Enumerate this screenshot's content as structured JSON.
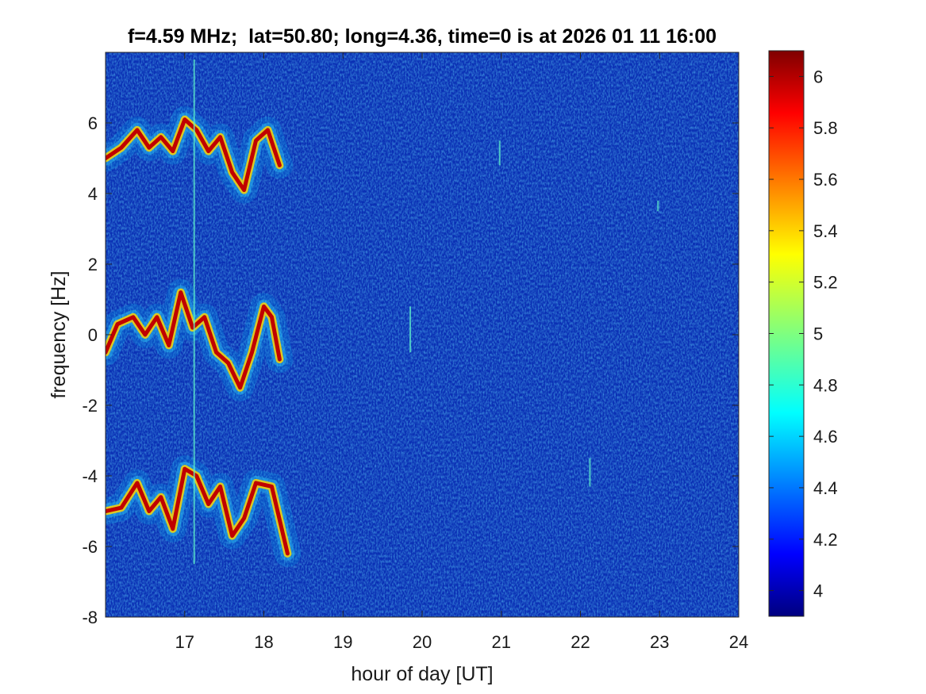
{
  "chart_data": {
    "type": "heatmap",
    "title": "f=4.59 MHz;  lat=50.80; long=4.36, time=0 is at 2026 01 11 16:00",
    "xlabel": "hour of day [UT]",
    "ylabel": "frequency [Hz]",
    "xlim": [
      16,
      24
    ],
    "ylim": [
      -8,
      8
    ],
    "x_ticks": [
      "17",
      "18",
      "19",
      "20",
      "21",
      "22",
      "23",
      "24"
    ],
    "x_tick_values": [
      17,
      18,
      19,
      20,
      21,
      22,
      23,
      24
    ],
    "y_ticks": [
      "6",
      "4",
      "2",
      "0",
      "-2",
      "-4",
      "-6",
      "-8"
    ],
    "y_tick_values": [
      6,
      4,
      2,
      0,
      -2,
      -4,
      -6,
      -8
    ],
    "colorbar": {
      "colormap": "jet",
      "clim": [
        3.9,
        6.1
      ],
      "ticks": [
        "6",
        "5.8",
        "5.6",
        "5.4",
        "5.2",
        "5",
        "4.8",
        "4.6",
        "4.4",
        "4.2",
        "4"
      ],
      "tick_values": [
        6,
        5.8,
        5.6,
        5.4,
        5.2,
        5,
        4.8,
        4.6,
        4.4,
        4.2,
        4
      ]
    },
    "background_level": 4.1,
    "traces": [
      {
        "center_offset_hz": 5.2,
        "hours": [
          16.0,
          16.2,
          16.4,
          16.55,
          16.7,
          16.85,
          17.0,
          17.15,
          17.3,
          17.45,
          17.6,
          17.75,
          17.9,
          18.05,
          18.2
        ],
        "freq_hz": [
          5.0,
          5.3,
          5.8,
          5.3,
          5.6,
          5.2,
          6.1,
          5.8,
          5.2,
          5.6,
          4.6,
          4.1,
          5.5,
          5.8,
          4.8
        ]
      },
      {
        "center_offset_hz": 0.0,
        "hours": [
          16.0,
          16.15,
          16.35,
          16.5,
          16.65,
          16.8,
          16.95,
          17.1,
          17.25,
          17.4,
          17.55,
          17.7,
          17.85,
          18.0,
          18.1,
          18.2
        ],
        "freq_hz": [
          -0.5,
          0.3,
          0.5,
          0.0,
          0.5,
          -0.3,
          1.2,
          0.2,
          0.5,
          -0.5,
          -0.8,
          -1.5,
          -0.5,
          0.8,
          0.5,
          -0.7
        ]
      },
      {
        "center_offset_hz": -5.2,
        "hours": [
          16.0,
          16.2,
          16.4,
          16.55,
          16.7,
          16.85,
          17.0,
          17.15,
          17.3,
          17.45,
          17.6,
          17.75,
          17.9,
          18.1,
          18.3
        ],
        "freq_hz": [
          -5.0,
          -4.9,
          -4.2,
          -5.0,
          -4.6,
          -5.5,
          -3.8,
          -4.0,
          -4.8,
          -4.3,
          -5.7,
          -5.2,
          -4.2,
          -4.3,
          -6.2
        ]
      }
    ],
    "vertical_streaks": [
      {
        "hour": 17.12,
        "from_hz": -6.5,
        "to_hz": 7.8
      },
      {
        "hour": 19.85,
        "from_hz": -0.5,
        "to_hz": 0.8
      },
      {
        "hour": 20.98,
        "from_hz": 4.8,
        "to_hz": 5.5
      },
      {
        "hour": 22.12,
        "from_hz": -4.3,
        "to_hz": -3.5
      },
      {
        "hour": 22.98,
        "from_hz": 3.5,
        "to_hz": 3.8
      }
    ]
  }
}
